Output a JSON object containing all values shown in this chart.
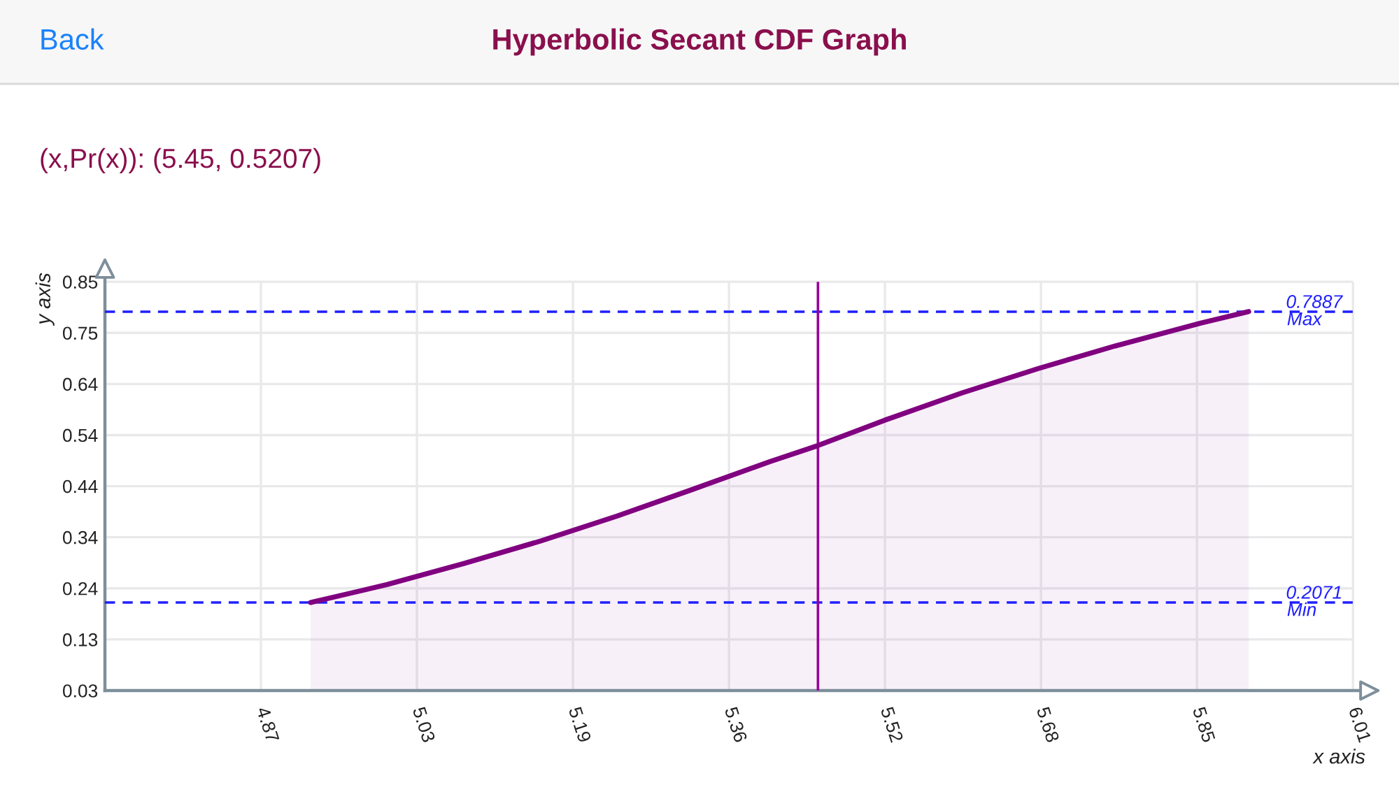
{
  "chart_data": {
    "type": "area",
    "title": "Hyperbolic Secant CDF Graph",
    "subtitle": "(x,Pr(x)): (5.45, 0.5207)",
    "xlabel": "x axis",
    "ylabel": "y axis",
    "annotations": [
      "Back",
      {
        "text": "Max",
        "x": 5.94,
        "y": 0.7887
      },
      {
        "text": "Min",
        "x": 5.94,
        "y": 0.2071
      }
    ],
    "x": [
      4.92,
      5.0,
      5.08,
      5.16,
      5.24,
      5.32,
      5.4,
      5.45,
      5.52,
      5.6,
      5.68,
      5.76,
      5.85,
      5.9
    ],
    "series": [
      {
        "color": "#800080",
        "values": [
          0.207,
          0.243,
          0.285,
          0.33,
          0.38,
          0.434,
          0.489,
          0.521,
          0.572,
          0.626,
          0.675,
          0.72,
          0.766,
          0.789
        ]
      }
    ],
    "xlim": [
      4.705,
      6.022
    ],
    "xticks": [
      {
        "value": 4.868,
        "label": "4.87"
      },
      {
        "value": 5.031,
        "label": "5.03"
      },
      {
        "value": 5.194,
        "label": "5.19"
      },
      {
        "value": 5.357,
        "label": "5.36"
      },
      {
        "value": 5.52,
        "label": "5.52"
      },
      {
        "value": 5.683,
        "label": "5.68"
      },
      {
        "value": 5.846,
        "label": "5.85"
      },
      {
        "value": 6.009,
        "label": "6.01"
      }
    ],
    "ylim": [
      0.031,
      0.867
    ],
    "yticks": [
      {
        "value": 0.031,
        "label": "0.03"
      },
      {
        "value": 0.1332,
        "label": "0.13"
      },
      {
        "value": 0.2354,
        "label": "0.24"
      },
      {
        "value": 0.3376,
        "label": "0.34"
      },
      {
        "value": 0.4398,
        "label": "0.44"
      },
      {
        "value": 0.542,
        "label": "0.54"
      },
      {
        "value": 0.6442,
        "label": "0.64"
      },
      {
        "value": 0.7464,
        "label": "0.75"
      },
      {
        "value": 0.8486,
        "label": "0.85"
      }
    ],
    "ref_lines": [
      {
        "axis": "y",
        "value": 0.7887,
        "label": "0.7887",
        "color": "#1f1fff",
        "line_style": "dashed"
      },
      {
        "axis": "y",
        "value": 0.2071,
        "label": "0.2071",
        "color": "#1f1fff",
        "line_style": "dashed"
      },
      {
        "axis": "x",
        "value": 5.45,
        "color": "#990099",
        "line_style": "solid"
      }
    ],
    "grid": true,
    "marker": "none",
    "line_style": "solid"
  }
}
